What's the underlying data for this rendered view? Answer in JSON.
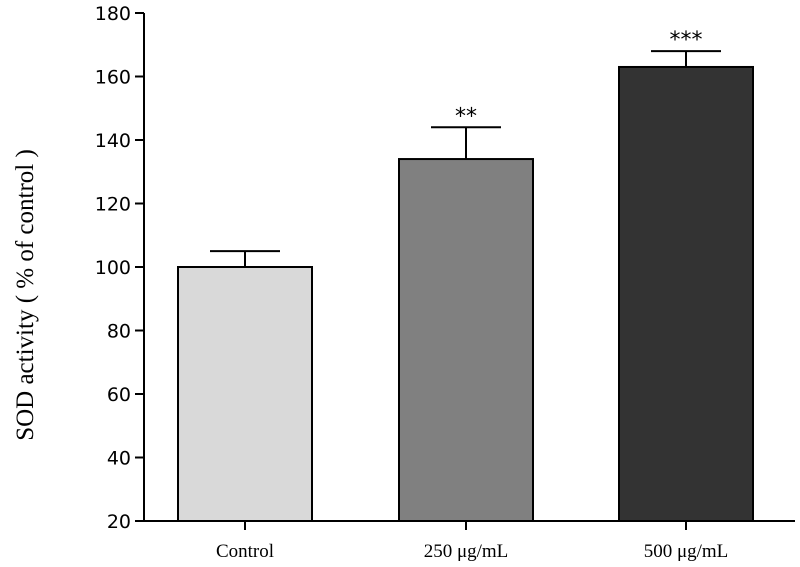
{
  "chart_data": {
    "type": "bar",
    "ylabel": "SOD activity ( % of control )",
    "xlabel": "",
    "title": "",
    "ylim": [
      20,
      180
    ],
    "yticks": [
      20,
      40,
      60,
      80,
      100,
      120,
      140,
      160,
      180
    ],
    "categories": [
      "Control",
      "250 μg/mL",
      "500 μg/mL"
    ],
    "values": [
      100,
      134,
      163
    ],
    "errors": [
      5,
      10,
      5
    ],
    "significance": [
      "",
      "**",
      "***"
    ],
    "bar_colors": [
      "#d9d9d9",
      "#808080",
      "#333333"
    ],
    "grid": false,
    "legend": "none"
  }
}
